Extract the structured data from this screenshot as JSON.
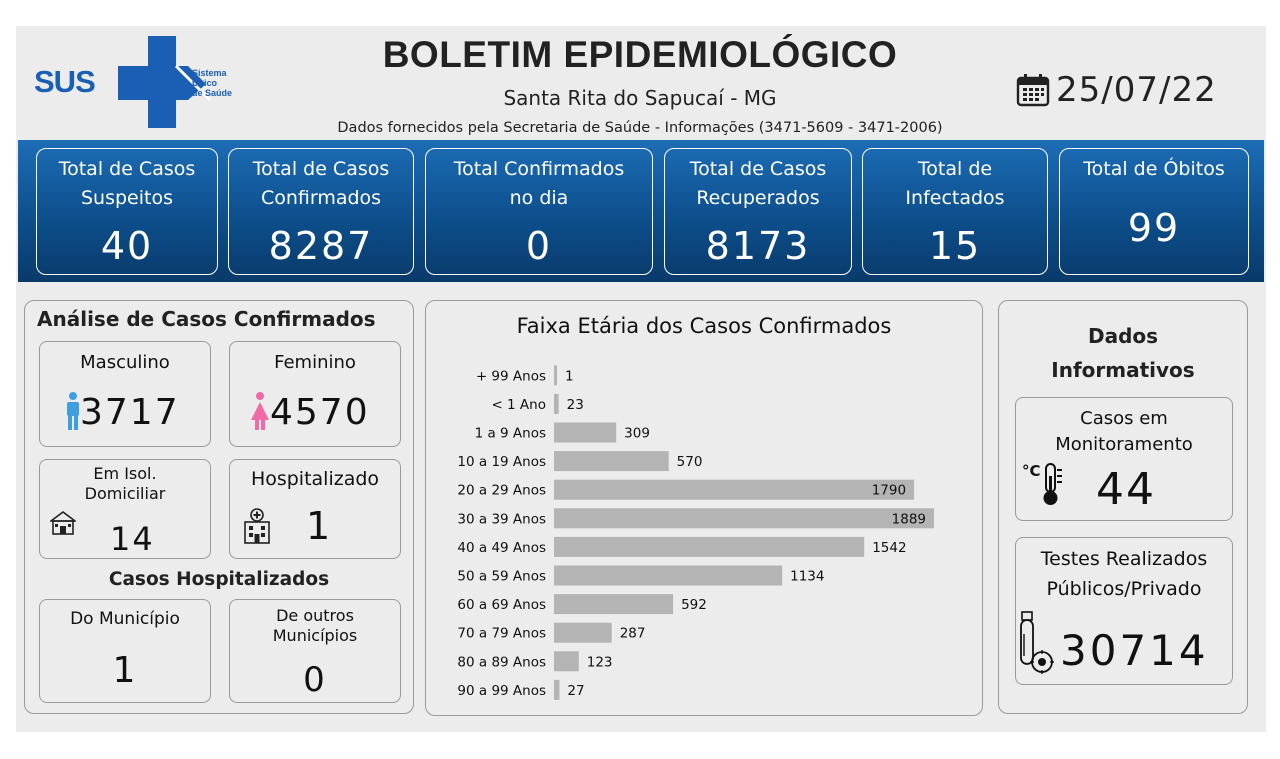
{
  "header": {
    "logo_text": "SUS",
    "logo_subtext_1": "Sistema",
    "logo_subtext_2": "Único",
    "logo_subtext_3": "de Saúde",
    "title": "BOLETIM EPIDEMIOLÓGICO",
    "subtitle": "Santa Rita do Sapucaí - MG",
    "source": "Dados fornecidos pela Secretaria de Saúde - Informações (3471-5609 - 3471-2006)",
    "date": "25/07/22",
    "date_icon": "calendar-icon"
  },
  "kpis": [
    {
      "label_1": "Total de Casos",
      "label_2": "Suspeitos",
      "value": "40"
    },
    {
      "label_1": "Total de Casos",
      "label_2": "Confirmados",
      "value": "8287"
    },
    {
      "label_1": "Total Confirmados",
      "label_2": "no dia",
      "value": "0"
    },
    {
      "label_1": "Total de Casos",
      "label_2": "Recuperados",
      "value": "8173"
    },
    {
      "label_1": "Total de",
      "label_2": "Infectados",
      "value": "15"
    },
    {
      "label_1": "Total de Óbitos",
      "label_2": "",
      "value": "99"
    }
  ],
  "analysis": {
    "title": "Análise de Casos Confirmados",
    "male_label": "Masculino",
    "male_value": "3717",
    "male_icon": "male-person-icon",
    "female_label": "Feminino",
    "female_value": "4570",
    "female_icon": "female-person-icon",
    "isolation_label_1": "Em Isol.",
    "isolation_label_2": "Domiciliar",
    "isolation_value": "14",
    "isolation_icon": "house-icon",
    "hospitalized_label": "Hospitalizado",
    "hospitalized_value": "1",
    "hospitalized_icon": "hospital-icon",
    "hosp_section_title": "Casos Hospitalizados",
    "municipality_label": "Do Município",
    "municipality_value": "1",
    "other_label_1": "De outros",
    "other_label_2": "Municípios",
    "other_value": "0"
  },
  "info": {
    "title_1": "Dados",
    "title_2": "Informativos",
    "monitor_label_1": "Casos em",
    "monitor_label_2": "Monitoramento",
    "monitor_value": "44",
    "monitor_icon": "thermometer-icon",
    "tests_label_1": "Testes Realizados",
    "tests_label_2": "Públicos/Privado",
    "tests_value": "30714",
    "tests_icon": "test-tube-virus-icon"
  },
  "colors": {
    "band_top": "#1d6db6",
    "band_bottom": "#093a6a",
    "bar": "#b4b4b4",
    "male": "#3f9ee0",
    "female": "#f06aa8"
  },
  "chart_data": {
    "type": "bar",
    "orientation": "horizontal",
    "title": "Faixa Etária dos Casos Confirmados",
    "categories": [
      "+ 99 Anos",
      "< 1 Ano",
      "1 a 9 Anos",
      "10 a 19 Anos",
      "20 a 29 Anos",
      "30 a 39 Anos",
      "40 a 49 Anos",
      "50 a 59 Anos",
      "60 a 69 Anos",
      "70 a 79 Anos",
      "80 a 89 Anos",
      "90 a 99 Anos"
    ],
    "values": [
      1,
      23,
      309,
      570,
      1790,
      1889,
      1542,
      1134,
      592,
      287,
      123,
      27
    ],
    "grid": false,
    "legend": "none"
  }
}
